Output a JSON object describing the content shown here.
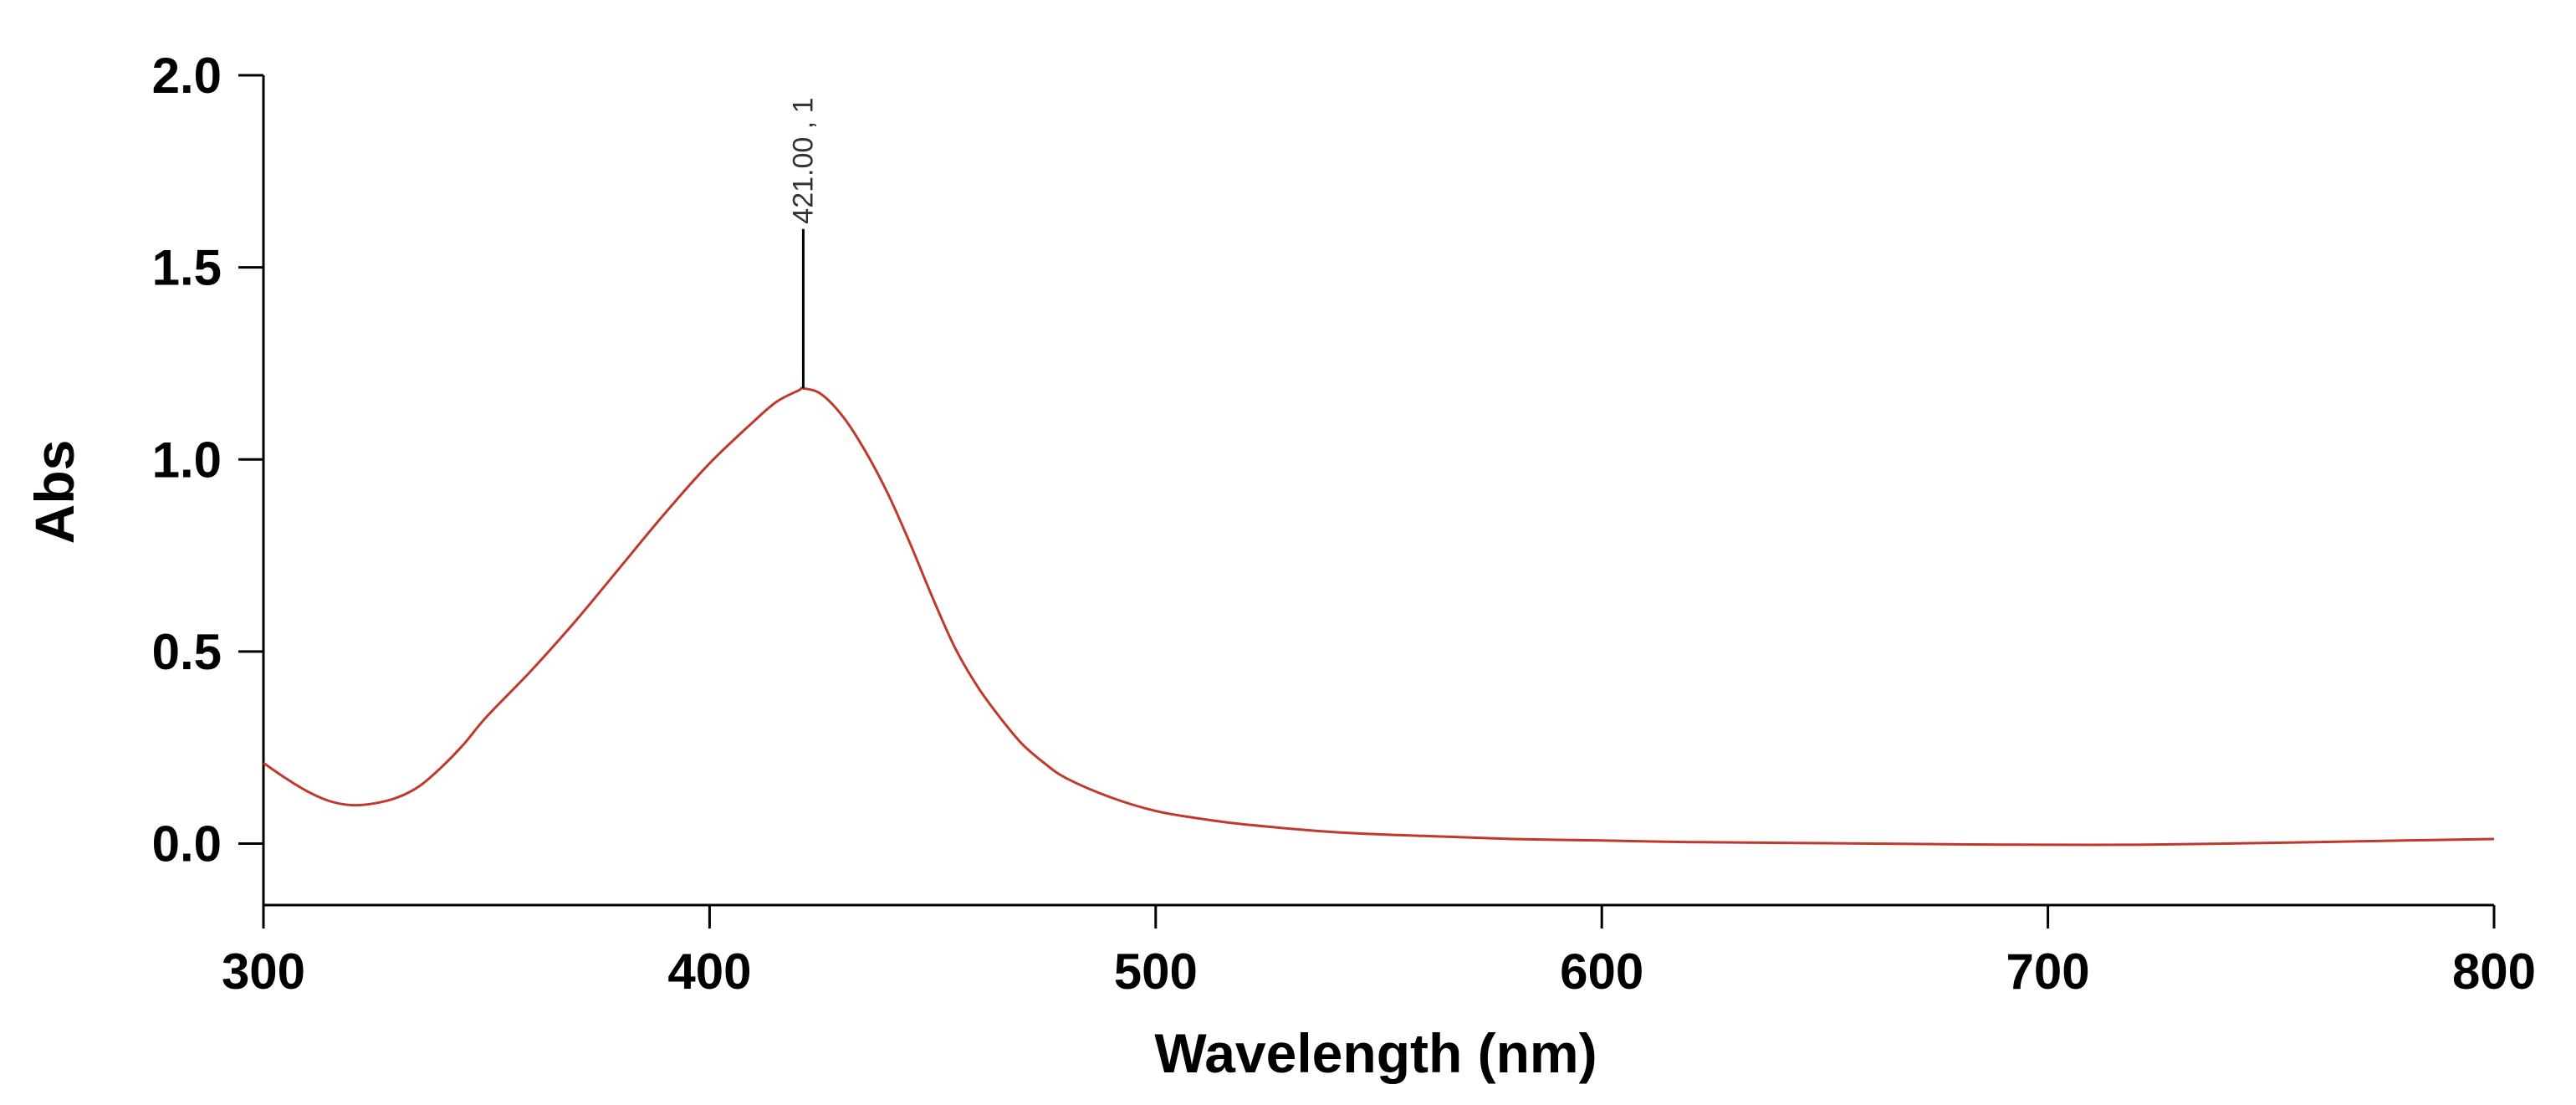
{
  "chart_data": {
    "type": "line",
    "xlabel": "Wavelength (nm)",
    "ylabel": "Abs",
    "xlim": [
      300,
      800
    ],
    "ylim": [
      -0.16,
      2.0
    ],
    "xticks": [
      300,
      400,
      500,
      600,
      700,
      800
    ],
    "yticks": [
      0.0,
      0.5,
      1.0,
      1.5,
      2.0
    ],
    "xtick_labels": [
      "300",
      "400",
      "500",
      "600",
      "700",
      "800"
    ],
    "ytick_labels": [
      "0.0",
      "0.5",
      "1.0",
      "1.5",
      "2.0"
    ],
    "grid": false,
    "series": [
      {
        "color": "#c0392b",
        "x": [
          300,
          305,
          310,
          315,
          320,
          325,
          330,
          335,
          340,
          345,
          350,
          360,
          370,
          380,
          390,
          400,
          410,
          415,
          420,
          421,
          425,
          430,
          435,
          440,
          445,
          450,
          455,
          460,
          465,
          470,
          475,
          480,
          490,
          500,
          510,
          520,
          540,
          560,
          580,
          600,
          620,
          640,
          660,
          680,
          700,
          720,
          740,
          760,
          780,
          800
        ],
        "y": [
          0.21,
          0.17,
          0.135,
          0.11,
          0.1,
          0.105,
          0.12,
          0.15,
          0.2,
          0.26,
          0.33,
          0.45,
          0.58,
          0.72,
          0.86,
          0.99,
          1.1,
          1.15,
          1.18,
          1.185,
          1.17,
          1.11,
          1.02,
          0.91,
          0.78,
          0.64,
          0.51,
          0.41,
          0.33,
          0.26,
          0.21,
          0.17,
          0.12,
          0.085,
          0.065,
          0.05,
          0.03,
          0.02,
          0.012,
          0.008,
          0.004,
          0.002,
          0.0,
          -0.002,
          -0.003,
          -0.003,
          0.0,
          0.004,
          0.008,
          0.012
        ]
      }
    ],
    "annotations": [
      {
        "text": "421.00 , 1",
        "x": 421,
        "y": 1.185,
        "marker_top_y": 1.6
      }
    ]
  }
}
